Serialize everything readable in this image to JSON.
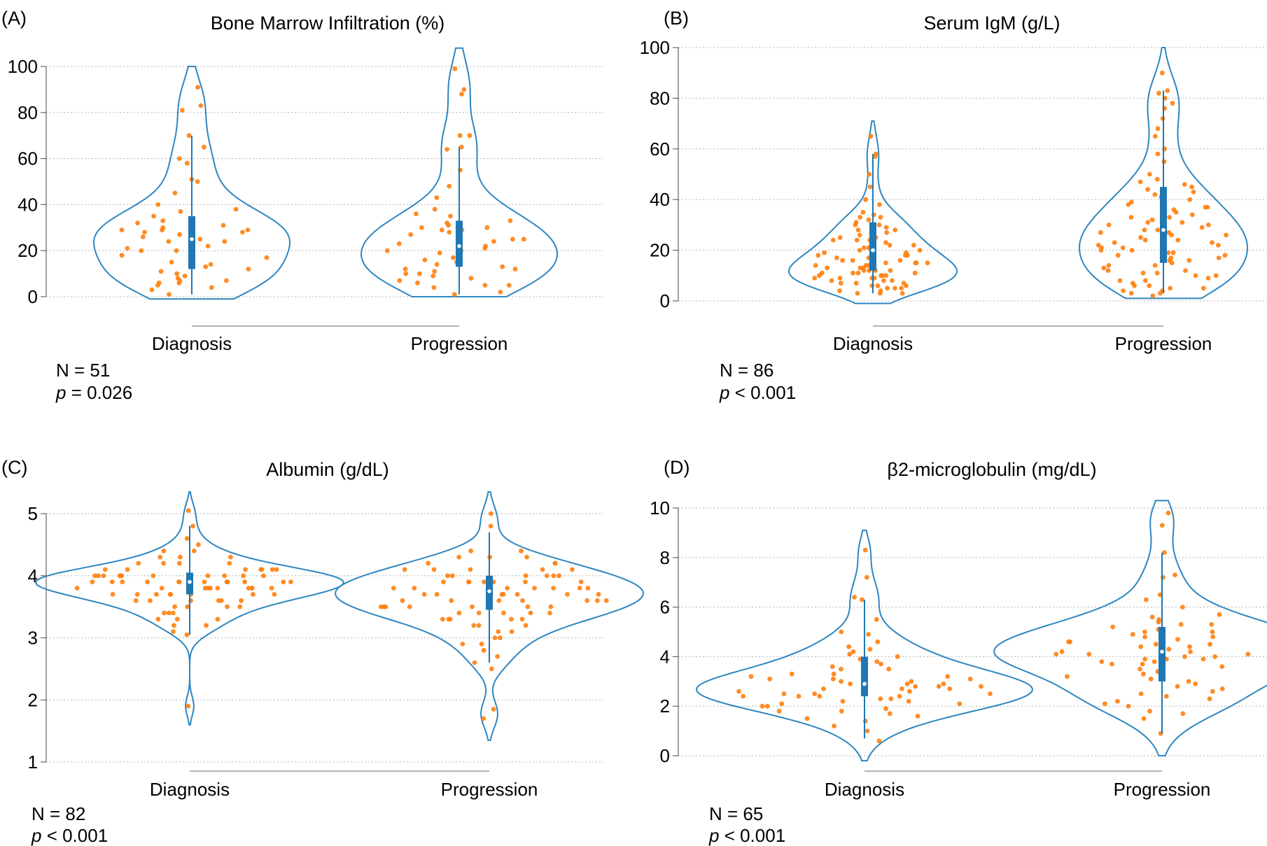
{
  "colors": {
    "violin": "#2e86c1",
    "box": "#1f77b4",
    "points": "#ff7f0e",
    "grid": "#b5b5b5",
    "axis": "#666666"
  },
  "chart_data": [
    {
      "panel_label": "(A)",
      "type": "violin",
      "title": "Bone Marrow Infiltration (%)",
      "categories": [
        "Diagnosis",
        "Progression"
      ],
      "ylim": [
        0,
        100
      ],
      "yticks": [
        0,
        20,
        40,
        60,
        80,
        100
      ],
      "grid": true,
      "n_text": "N = 51",
      "p_text": "p = 0.026",
      "p_letter": "p",
      "p_rest": " = 0.026",
      "groups": [
        {
          "name": "Diagnosis",
          "box": {
            "min": 1,
            "q1": 12,
            "median": 25,
            "q3": 35,
            "max": 70
          },
          "violin_range": [
            -1,
            100
          ],
          "points": [
            91,
            83,
            81,
            70,
            65,
            60,
            58,
            51,
            50,
            45,
            40,
            38,
            37,
            35,
            34,
            33,
            32,
            31,
            30,
            29,
            29,
            29,
            28,
            28,
            27,
            26,
            25,
            24,
            24,
            22,
            21,
            20,
            20,
            18,
            17,
            15,
            14,
            13,
            12,
            11,
            10,
            9,
            8,
            7,
            7,
            6,
            6,
            5,
            4,
            3,
            1
          ]
        },
        {
          "name": "Progression",
          "box": {
            "min": 1,
            "q1": 13,
            "median": 22,
            "q3": 33,
            "max": 65
          },
          "violin_range": [
            0,
            108
          ],
          "points": [
            99,
            90,
            88,
            70,
            70,
            65,
            64,
            55,
            48,
            43,
            38,
            36,
            35,
            33,
            32,
            31,
            30,
            30,
            29,
            29,
            28,
            27,
            25,
            25,
            24,
            23,
            22,
            21,
            20,
            20,
            19,
            18,
            17,
            16,
            15,
            14,
            13,
            12,
            12,
            11,
            10,
            10,
            9,
            8,
            7,
            6,
            5,
            5,
            4,
            2,
            1
          ]
        }
      ]
    },
    {
      "panel_label": "(B)",
      "type": "violin",
      "title": "Serum IgM (g/L)",
      "categories": [
        "Diagnosis",
        "Progression"
      ],
      "ylim": [
        0,
        100
      ],
      "yticks": [
        0,
        20,
        40,
        60,
        80,
        100
      ],
      "grid": true,
      "n_text": "N = 86",
      "p_text": "p < 0.001",
      "p_letter": "p",
      "p_rest": " < 0.001",
      "groups": [
        {
          "name": "Diagnosis",
          "box": {
            "min": 3,
            "q1": 12,
            "median": 20,
            "q3": 31,
            "max": 58
          },
          "violin_range": [
            -1,
            71
          ],
          "points": [
            65,
            58,
            57,
            50,
            45,
            40,
            38,
            35,
            34,
            33,
            33,
            32,
            31,
            30,
            30,
            29,
            28,
            28,
            27,
            26,
            25,
            25,
            24,
            24,
            23,
            22,
            22,
            21,
            21,
            20,
            20,
            19,
            19,
            18,
            18,
            17,
            17,
            16,
            16,
            15,
            15,
            15,
            14,
            14,
            13,
            13,
            12,
            12,
            12,
            11,
            11,
            11,
            10,
            10,
            10,
            9,
            9,
            9,
            8,
            8,
            8,
            7,
            7,
            7,
            6,
            6,
            6,
            5,
            5,
            5,
            4,
            4,
            3,
            3,
            3,
            14,
            12,
            16,
            18,
            10,
            22,
            24,
            9,
            11,
            13,
            15
          ]
        },
        {
          "name": "Progression",
          "box": {
            "min": 3,
            "q1": 15,
            "median": 28,
            "q3": 45,
            "max": 83
          },
          "violin_range": [
            1,
            100
          ],
          "points": [
            90,
            83,
            82,
            80,
            78,
            76,
            72,
            68,
            65,
            60,
            58,
            55,
            50,
            48,
            47,
            46,
            45,
            44,
            43,
            42,
            41,
            40,
            39,
            38,
            37,
            36,
            35,
            34,
            33,
            32,
            31,
            31,
            30,
            30,
            29,
            28,
            28,
            27,
            26,
            26,
            25,
            24,
            24,
            23,
            22,
            22,
            21,
            21,
            20,
            20,
            19,
            18,
            18,
            17,
            16,
            16,
            15,
            14,
            14,
            13,
            12,
            12,
            11,
            10,
            10,
            9,
            8,
            8,
            7,
            6,
            6,
            5,
            5,
            4,
            4,
            3,
            3,
            2,
            17,
            23,
            33,
            37,
            11,
            27,
            19,
            29
          ]
        }
      ]
    },
    {
      "panel_label": "(C)",
      "type": "violin",
      "title": "Albumin (g/dL)",
      "categories": [
        "Diagnosis",
        "Progression"
      ],
      "ylim": [
        1,
        5
      ],
      "yticks": [
        1,
        2,
        3,
        4,
        5
      ],
      "grid": true,
      "n_text": "N = 82",
      "p_text": "p < 0.001",
      "p_letter": "p",
      "p_rest": " < 0.001",
      "groups": [
        {
          "name": "Diagnosis",
          "box": {
            "min": 3.05,
            "q1": 3.7,
            "median": 3.9,
            "q3": 4.05,
            "max": 4.8
          },
          "violin_range": [
            1.6,
            5.35
          ],
          "points": [
            5.05,
            4.8,
            4.6,
            4.5,
            4.4,
            4.4,
            4.3,
            4.3,
            4.2,
            4.2,
            4.2,
            4.1,
            4.1,
            4.1,
            4.1,
            4.1,
            4.0,
            4.0,
            4.0,
            4.0,
            4.0,
            4.0,
            4.0,
            4.0,
            3.9,
            3.9,
            3.9,
            3.9,
            3.9,
            3.9,
            3.9,
            3.9,
            3.9,
            3.8,
            3.8,
            3.8,
            3.8,
            3.8,
            3.8,
            3.8,
            3.7,
            3.7,
            3.7,
            3.7,
            3.7,
            3.7,
            3.6,
            3.6,
            3.6,
            3.6,
            3.5,
            3.5,
            3.5,
            3.4,
            3.4,
            3.4,
            3.3,
            3.3,
            3.2,
            3.2,
            3.1,
            3.05,
            1.9,
            4.0,
            3.9,
            4.1,
            3.8,
            3.7,
            4.0,
            3.6,
            3.9,
            4.2,
            3.5,
            3.8,
            4.1,
            3.7,
            3.9,
            4.0,
            3.6,
            3.8,
            3.3,
            4.3
          ]
        },
        {
          "name": "Progression",
          "box": {
            "min": 2.6,
            "q1": 3.45,
            "median": 3.75,
            "q3": 4.0,
            "max": 4.7
          },
          "violin_range": [
            1.35,
            5.35
          ],
          "points": [
            5.0,
            4.8,
            4.4,
            4.4,
            4.3,
            4.3,
            4.3,
            4.2,
            4.2,
            4.2,
            4.1,
            4.1,
            4.1,
            4.1,
            4.0,
            4.0,
            4.0,
            4.0,
            4.0,
            3.9,
            3.9,
            3.9,
            3.9,
            3.9,
            3.8,
            3.8,
            3.8,
            3.8,
            3.8,
            3.8,
            3.7,
            3.7,
            3.7,
            3.7,
            3.7,
            3.7,
            3.6,
            3.6,
            3.6,
            3.6,
            3.6,
            3.5,
            3.5,
            3.5,
            3.5,
            3.5,
            3.4,
            3.4,
            3.4,
            3.4,
            3.3,
            3.3,
            3.3,
            3.3,
            3.2,
            3.2,
            3.2,
            3.1,
            3.1,
            3.0,
            3.0,
            2.9,
            2.9,
            2.8,
            2.7,
            2.6,
            2.5,
            1.85,
            1.7,
            3.7,
            3.9,
            3.5,
            4.0,
            3.6,
            3.8,
            3.4,
            3.7,
            4.1,
            3.3,
            3.6,
            3.9,
            3.5
          ]
        }
      ]
    },
    {
      "panel_label": "(D)",
      "type": "violin",
      "title": "β2-microglobulin (mg/dL)",
      "categories": [
        "Diagnosis",
        "Progression"
      ],
      "ylim": [
        0,
        10
      ],
      "yticks": [
        0,
        2,
        4,
        6,
        8,
        10
      ],
      "grid": true,
      "n_text": "N = 65",
      "p_text": "p < 0.001",
      "p_letter": "p",
      "p_rest": " < 0.001",
      "groups": [
        {
          "name": "Diagnosis",
          "box": {
            "min": 0.7,
            "q1": 2.4,
            "median": 2.9,
            "q3": 4.0,
            "max": 6.3
          },
          "violin_range": [
            -0.2,
            9.1
          ],
          "points": [
            8.3,
            7.2,
            6.4,
            6.3,
            5.5,
            5.0,
            4.9,
            4.6,
            4.4,
            4.3,
            4.2,
            4.1,
            4.0,
            3.9,
            3.8,
            3.7,
            3.6,
            3.5,
            3.4,
            3.3,
            3.3,
            3.2,
            3.2,
            3.1,
            3.1,
            3.0,
            3.0,
            2.9,
            2.9,
            2.8,
            2.8,
            2.8,
            2.7,
            2.7,
            2.6,
            2.6,
            2.5,
            2.5,
            2.5,
            2.4,
            2.4,
            2.4,
            2.3,
            2.3,
            2.2,
            2.2,
            2.1,
            2.1,
            2.0,
            2.0,
            1.9,
            1.8,
            1.7,
            1.6,
            1.5,
            1.4,
            1.2,
            1.0,
            0.6,
            2.7,
            3.1,
            2.9,
            2.4,
            3.5,
            1.8
          ]
        },
        {
          "name": "Progression",
          "box": {
            "min": 0.9,
            "q1": 3.0,
            "median": 4.2,
            "q3": 5.2,
            "max": 8.2
          },
          "violin_range": [
            0,
            10.3
          ],
          "points": [
            9.8,
            9.3,
            8.2,
            7.3,
            7.2,
            6.5,
            6.3,
            6.0,
            5.7,
            5.6,
            5.5,
            5.4,
            5.3,
            5.2,
            5.1,
            5.0,
            5.0,
            4.9,
            4.8,
            4.8,
            4.7,
            4.6,
            4.5,
            4.5,
            4.4,
            4.4,
            4.3,
            4.3,
            4.2,
            4.2,
            4.1,
            4.1,
            4.0,
            4.0,
            3.9,
            3.9,
            3.8,
            3.8,
            3.7,
            3.7,
            3.6,
            3.5,
            3.4,
            3.3,
            3.2,
            3.1,
            3.0,
            2.9,
            2.8,
            2.7,
            2.6,
            2.5,
            2.4,
            2.3,
            2.2,
            2.1,
            2.0,
            1.8,
            1.7,
            1.5,
            0.9,
            4.6,
            3.9,
            4.1,
            5.3
          ]
        }
      ]
    }
  ]
}
